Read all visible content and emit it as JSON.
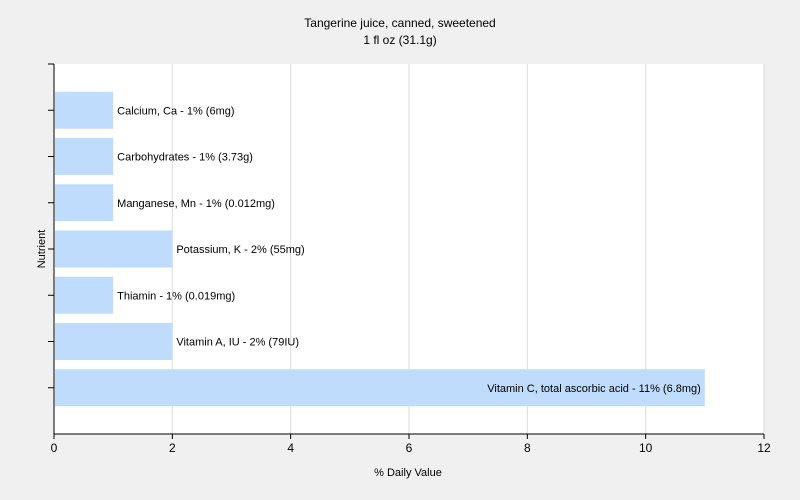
{
  "chart_data": {
    "type": "bar",
    "orientation": "horizontal",
    "title": "Tangerine juice, canned, sweetened",
    "subtitle": "1 fl oz (31.1g)",
    "xlabel": "% Daily Value",
    "ylabel": "Nutrient",
    "xlim": [
      0,
      12
    ],
    "x_ticks": [
      0,
      2,
      4,
      6,
      8,
      10,
      12
    ],
    "grid": true,
    "bar_color": "#bfdcfc",
    "categories": [
      "Calcium, Ca",
      "Carbohydrates",
      "Manganese, Mn",
      "Potassium, K",
      "Thiamin",
      "Vitamin A, IU",
      "Vitamin C, total ascorbic acid"
    ],
    "values": [
      1,
      1,
      1,
      2,
      1,
      2,
      11
    ],
    "data_labels": [
      "Calcium, Ca - 1% (6mg)",
      "Carbohydrates - 1% (3.73g)",
      "Manganese, Mn - 1% (0.012mg)",
      "Potassium, K - 2% (55mg)",
      "Thiamin - 1% (0.019mg)",
      "Vitamin A, IU - 2% (79IU)",
      "Vitamin C, total ascorbic acid - 11% (6.8mg)"
    ]
  }
}
